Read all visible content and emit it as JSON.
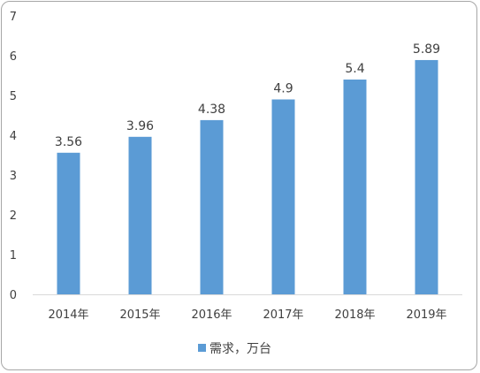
{
  "chart_data": {
    "type": "bar",
    "categories": [
      "2014年",
      "2015年",
      "2016年",
      "2017年",
      "2018年",
      "2019年"
    ],
    "series": [
      {
        "name": "需求，万台",
        "values": [
          3.56,
          3.96,
          4.38,
          4.9,
          5.4,
          5.89
        ],
        "color": "#5b9bd5"
      }
    ],
    "data_labels": [
      "3.56",
      "3.96",
      "4.38",
      "4.9",
      "5.4",
      "5.89"
    ],
    "yticks": [
      "0",
      "1",
      "2",
      "3",
      "4",
      "5",
      "6",
      "7"
    ],
    "ylim": [
      0,
      7
    ],
    "grid": false,
    "legend_position": "bottom",
    "title": "",
    "xlabel": "",
    "ylabel": ""
  }
}
